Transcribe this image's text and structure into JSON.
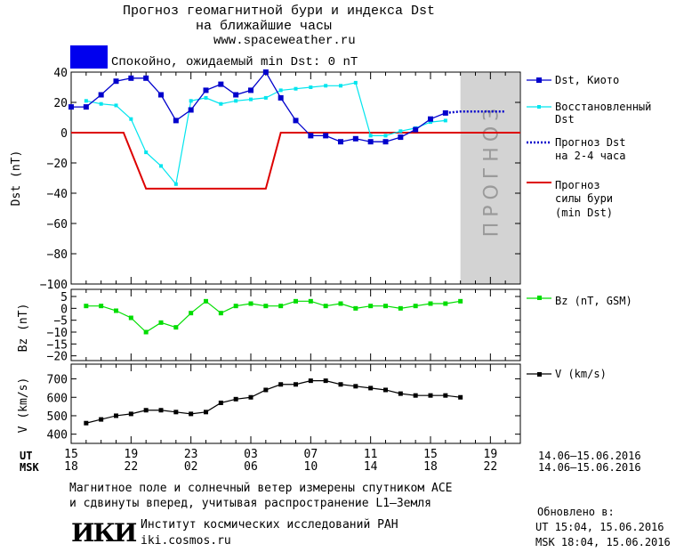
{
  "header": {
    "title_line1": "Прогноз геомагнитной бури и индекса Dst",
    "title_line2": "на ближайшие часы",
    "site": "www.spaceweather.ru",
    "status_color": "#0000ee",
    "status_text": "Спокойно, ожидаемый min Dst: 0 nT"
  },
  "colors": {
    "dst_kyoto": "#0000cc",
    "dst_restored": "#00e5ee",
    "dst_forecast": "#0000cc",
    "storm_forecast": "#dd0000",
    "bz": "#00dd00",
    "v": "#000000",
    "forecast_zone": "#d3d3d3"
  },
  "chart_data": [
    {
      "id": "dst",
      "type": "line",
      "ylabel": "Dst (nT)",
      "ylim": [
        -100,
        40
      ],
      "yticks": [
        40,
        20,
        0,
        -20,
        -40,
        -60,
        -80,
        -100
      ],
      "xlim": [
        0,
        30
      ],
      "forecast_zone": {
        "x": [
          26,
          30
        ],
        "label": "ПРОГНОЗ"
      },
      "series": [
        {
          "name": "Dst, Киото",
          "key": "kyoto",
          "x": [
            0,
            1,
            2,
            3,
            4,
            5,
            6,
            7,
            8,
            9,
            10,
            11,
            12,
            13,
            14,
            15,
            16,
            17,
            18,
            19,
            20,
            21,
            22,
            23,
            24,
            25
          ],
          "values": [
            17,
            17,
            25,
            34,
            36,
            36,
            25,
            8,
            15,
            28,
            32,
            25,
            28,
            40,
            23,
            8,
            -2,
            -2,
            -6,
            -4,
            -6,
            -6,
            -3,
            2,
            9,
            13
          ]
        },
        {
          "name": "Восстановленный Dst",
          "key": "restored",
          "x": [
            1,
            2,
            3,
            4,
            5,
            6,
            7,
            8,
            9,
            10,
            11,
            12,
            13,
            14,
            15,
            16,
            17,
            18,
            19,
            20,
            21,
            22,
            23,
            24,
            25
          ],
          "values": [
            21,
            19,
            18,
            9,
            -13,
            -22,
            -34,
            21,
            23,
            19,
            21,
            22,
            23,
            28,
            29,
            30,
            31,
            31,
            33,
            -2,
            -2,
            1,
            3,
            7,
            8
          ]
        },
        {
          "name": "Прогноз Dst на 2-4 часа",
          "key": "forecast",
          "x": [
            25,
            26,
            27,
            28,
            29
          ],
          "values": [
            13,
            14,
            14,
            14,
            14
          ]
        },
        {
          "name": "Прогноз силы бури (min Dst)",
          "key": "storm",
          "x": [
            0,
            3.5,
            5,
            13,
            14,
            30
          ],
          "values": [
            0,
            0,
            -37,
            -37,
            0,
            0
          ]
        }
      ]
    },
    {
      "id": "bz",
      "type": "line",
      "ylabel": "Bz (nT)",
      "ylim": [
        -22,
        8
      ],
      "yticks": [
        5,
        0,
        -5,
        -10,
        -15,
        -20
      ],
      "xlim": [
        0,
        30
      ],
      "series": [
        {
          "name": "Bz (nT, GSM)",
          "key": "bz",
          "x": [
            1,
            2,
            3,
            4,
            5,
            6,
            7,
            8,
            9,
            10,
            11,
            12,
            13,
            14,
            15,
            16,
            17,
            18,
            19,
            20,
            21,
            22,
            23,
            24,
            25,
            26
          ],
          "values": [
            1,
            1,
            -1,
            -4,
            -10,
            -6,
            -8,
            -2,
            3,
            -2,
            1,
            2,
            1,
            1,
            3,
            3,
            1,
            2,
            0,
            1,
            1,
            0,
            1,
            2,
            2,
            3
          ]
        }
      ]
    },
    {
      "id": "v",
      "type": "line",
      "ylabel": "V (km/s)",
      "ylim": [
        350,
        780
      ],
      "yticks": [
        700,
        600,
        500,
        400
      ],
      "xlim": [
        0,
        30
      ],
      "series": [
        {
          "name": "V (km/s)",
          "key": "v",
          "x": [
            1,
            2,
            3,
            4,
            5,
            6,
            7,
            8,
            9,
            10,
            11,
            12,
            13,
            14,
            15,
            16,
            17,
            18,
            19,
            20,
            21,
            22,
            23,
            24,
            25,
            26
          ],
          "values": [
            460,
            480,
            500,
            510,
            530,
            530,
            520,
            510,
            520,
            570,
            590,
            600,
            640,
            670,
            670,
            690,
            690,
            670,
            660,
            650,
            640,
            620,
            610,
            610,
            610,
            600
          ]
        }
      ]
    }
  ],
  "xaxis": {
    "ut_label": "UT",
    "msk_label": "MSK",
    "ut_ticks": [
      "15",
      "19",
      "23",
      "03",
      "07",
      "11",
      "15",
      "19"
    ],
    "msk_ticks": [
      "18",
      "22",
      "02",
      "06",
      "10",
      "14",
      "18",
      "22"
    ],
    "ut_range": "14.06–15.06.2016",
    "msk_range": "14.06–15.06.2016"
  },
  "footer": {
    "note_line1": "Магнитное поле и солнечный ветер измерены спутником ACE",
    "note_line2": "и сдвинуты вперед, учитывая распространение L1–Земля",
    "logo_text": "ИКИ",
    "institute": "Институт космических исследований РАН",
    "site": "iki.cosmos.ru",
    "updated_label": "Обновлено в:",
    "updated_ut": "UT  15:04, 15.06.2016",
    "updated_msk": "MSK 18:04, 15.06.2016"
  }
}
